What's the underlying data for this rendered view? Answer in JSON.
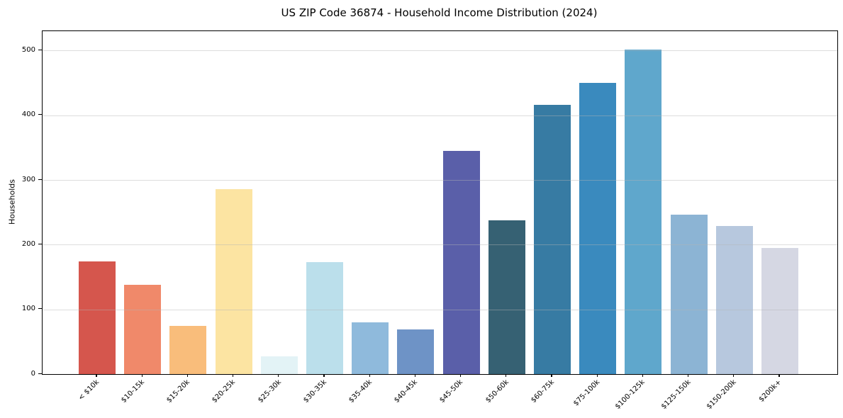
{
  "chart_data": {
    "type": "bar",
    "title": "US ZIP Code 36874 - Household Income Distribution (2024)",
    "xlabel": "",
    "ylabel": "Households",
    "categories": [
      "< $10k",
      "$10-15k",
      "$15-20k",
      "$20-25k",
      "$25-30k",
      "$30-35k",
      "$35-40k",
      "$40-45k",
      "$45-50k",
      "$50-60k",
      "$60-75k",
      "$75-100k",
      "$100-125k",
      "$125-150k",
      "$150-200k",
      "$200k+"
    ],
    "values": [
      174,
      138,
      75,
      286,
      27,
      173,
      80,
      69,
      345,
      238,
      416,
      450,
      502,
      246,
      229,
      195
    ],
    "bar_colors": [
      "#d5564d",
      "#f0896a",
      "#f9bd7b",
      "#fce4a2",
      "#e3f3f6",
      "#bbdfeb",
      "#8fbadc",
      "#6e93c6",
      "#5a5fa9",
      "#366173",
      "#377ba3",
      "#3a8abe",
      "#5fa7cc",
      "#8cb4d4",
      "#b7c8de",
      "#d5d7e3"
    ],
    "yticks": [
      0,
      100,
      200,
      300,
      400,
      500
    ],
    "ylim": [
      0,
      530
    ],
    "grid": "horizontal",
    "legend": "none",
    "colors": {
      "background": "#ffffff",
      "gridline_rgba": "rgba(180,180,180,0.45)",
      "spine": "#000000",
      "text": "#000000"
    }
  }
}
